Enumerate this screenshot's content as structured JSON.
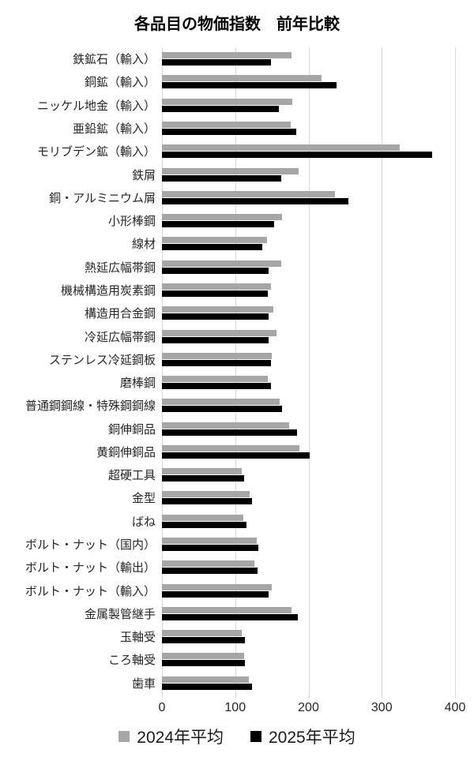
{
  "colors": {
    "series_2024": "#a6a6a6",
    "series_2025": "#000000",
    "gridline": "#d9d9d9",
    "label_text": "#262626"
  },
  "chart_data": {
    "type": "bar",
    "orientation": "horizontal",
    "title": "各品目の物価指数　前年比較",
    "xlabel": "",
    "ylabel": "",
    "xlim": [
      0,
      400
    ],
    "xticks": [
      0,
      100,
      200,
      300,
      400
    ],
    "grid": true,
    "legend_position": "bottom",
    "categories": [
      "鉄鉱石（輸入）",
      "銅鉱（輸入）",
      "ニッケル地金（輸入）",
      "亜鉛鉱（輸入）",
      "モリブデン鉱（輸入）",
      "鉄屑",
      "銅・アルミニウム屑",
      "小形棒鋼",
      "線材",
      "熱延広幅帯鋼",
      "機械構造用炭素鋼",
      "構造用合金鋼",
      "冷延広幅帯鋼",
      "ステンレス冷延鋼板",
      "磨棒鋼",
      "普通鋼鋼線・特殊鋼鋼線",
      "銅伸銅品",
      "黄銅伸銅品",
      "超硬工具",
      "金型",
      "ばね",
      "ボルト・ナット（国内）",
      "ボルト・ナット（輸出）",
      "ボルト・ナット（輸入）",
      "金属製管継手",
      "玉軸受",
      "ころ軸受",
      "歯車"
    ],
    "series": [
      {
        "name": "2024年平均",
        "color": "#a6a6a6",
        "values": [
          177,
          218,
          178,
          176,
          325,
          187,
          236,
          164,
          143,
          163,
          149,
          152,
          156,
          150,
          144,
          161,
          174,
          188,
          109,
          120,
          111,
          129,
          126,
          150,
          177,
          109,
          112,
          119
        ]
      },
      {
        "name": "2025年平均",
        "color": "#000000",
        "values": [
          149,
          238,
          160,
          183,
          369,
          163,
          254,
          153,
          137,
          146,
          144,
          146,
          146,
          149,
          149,
          164,
          184,
          202,
          112,
          123,
          115,
          132,
          130,
          146,
          185,
          113,
          113,
          123
        ]
      }
    ]
  }
}
